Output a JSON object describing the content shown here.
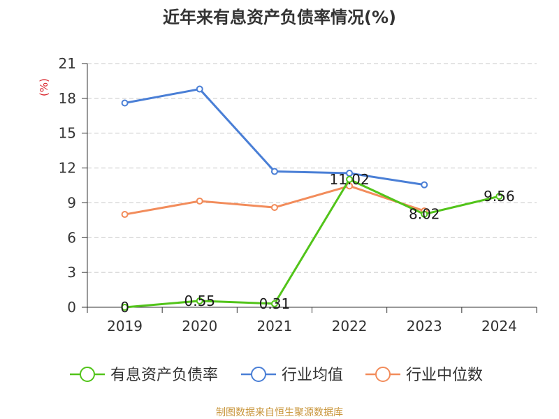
{
  "chart_data": {
    "type": "line",
    "title": "近年来有息资产负债率情况(%)",
    "xlabel": "",
    "ylabel": "(%)",
    "categories": [
      "2019",
      "2020",
      "2021",
      "2022",
      "2023",
      "2024"
    ],
    "ylim": [
      0,
      21
    ],
    "yticks": [
      0,
      3,
      6,
      9,
      12,
      15,
      18,
      21
    ],
    "grid": true,
    "legend_position": "bottom",
    "series": [
      {
        "name": "有息资产负债率",
        "color": "#52c41a",
        "values": [
          0,
          0.55,
          0.31,
          11.02,
          8.02,
          9.56
        ],
        "labels": [
          "0",
          "0.55",
          "0.31",
          "11.02",
          "8.02",
          "9.56"
        ]
      },
      {
        "name": "行业均值",
        "color": "#4a7fd6",
        "values": [
          17.6,
          18.8,
          11.7,
          11.55,
          10.55,
          null
        ]
      },
      {
        "name": "行业中位数",
        "color": "#f28c5b",
        "values": [
          8.0,
          9.15,
          8.6,
          10.45,
          8.3,
          null
        ]
      }
    ],
    "source": "制图数据来自恒生聚源数据库",
    "source_color": "#c8953a",
    "ylabel_color": "#d9272e"
  }
}
